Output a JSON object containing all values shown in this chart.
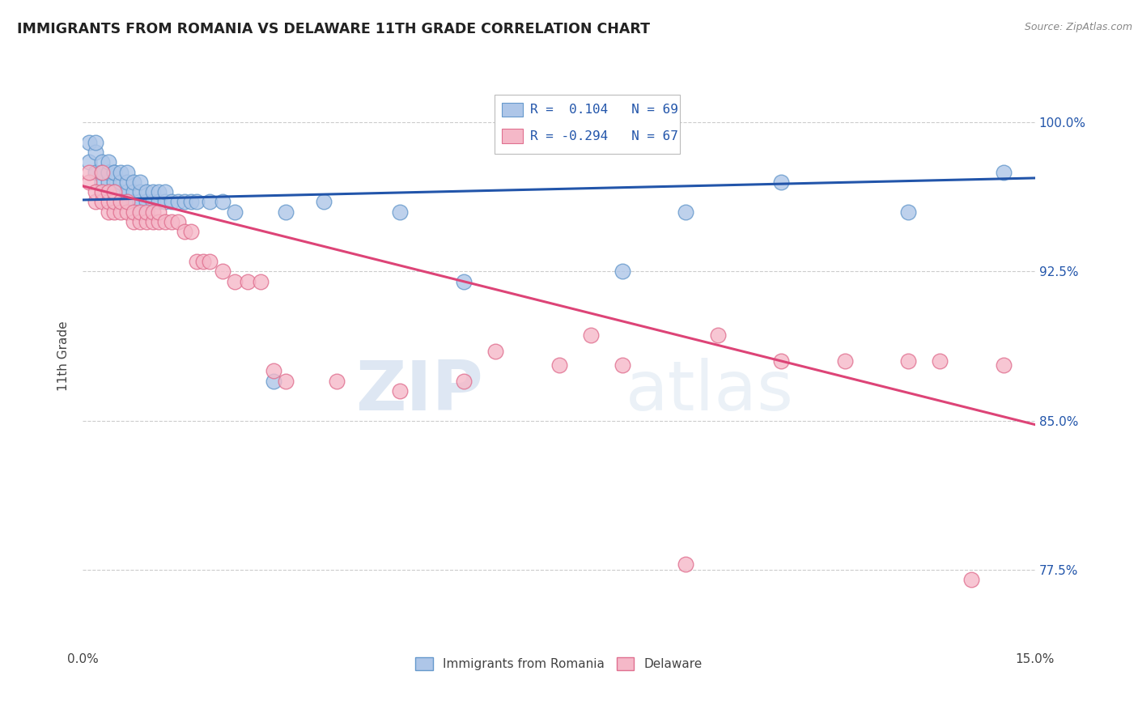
{
  "title": "IMMIGRANTS FROM ROMANIA VS DELAWARE 11TH GRADE CORRELATION CHART",
  "source": "Source: ZipAtlas.com",
  "ylabel": "11th Grade",
  "y_tick_labels": [
    "77.5%",
    "85.0%",
    "92.5%",
    "100.0%"
  ],
  "y_tick_values": [
    0.775,
    0.85,
    0.925,
    1.0
  ],
  "xlim": [
    0.0,
    0.15
  ],
  "ylim": [
    0.735,
    1.03
  ],
  "legend_label_blue": "Immigrants from Romania",
  "legend_label_pink": "Delaware",
  "blue_color": "#aec6e8",
  "blue_edge": "#6699cc",
  "pink_color": "#f5b8c8",
  "pink_edge": "#e07090",
  "blue_line_color": "#2255aa",
  "pink_line_color": "#dd4477",
  "watermark_zip": "ZIP",
  "watermark_atlas": "atlas",
  "blue_line_x": [
    0.0,
    0.15
  ],
  "blue_line_y": [
    0.961,
    0.972
  ],
  "pink_line_x": [
    0.0,
    0.15
  ],
  "pink_line_y": [
    0.968,
    0.848
  ],
  "blue_scatter_x": [
    0.001,
    0.001,
    0.002,
    0.002,
    0.002,
    0.003,
    0.003,
    0.003,
    0.003,
    0.004,
    0.004,
    0.004,
    0.004,
    0.005,
    0.005,
    0.005,
    0.005,
    0.005,
    0.006,
    0.006,
    0.006,
    0.006,
    0.007,
    0.007,
    0.007,
    0.007,
    0.008,
    0.008,
    0.008,
    0.009,
    0.009,
    0.009,
    0.009,
    0.01,
    0.01,
    0.01,
    0.011,
    0.011,
    0.012,
    0.012,
    0.013,
    0.013,
    0.014,
    0.015,
    0.016,
    0.017,
    0.018,
    0.02,
    0.022,
    0.024,
    0.03,
    0.032,
    0.038,
    0.05,
    0.06,
    0.085,
    0.095,
    0.11,
    0.13,
    0.145
  ],
  "blue_scatter_y": [
    0.99,
    0.98,
    0.975,
    0.985,
    0.99,
    0.975,
    0.97,
    0.98,
    0.975,
    0.975,
    0.97,
    0.975,
    0.98,
    0.97,
    0.975,
    0.965,
    0.96,
    0.975,
    0.965,
    0.97,
    0.975,
    0.96,
    0.965,
    0.96,
    0.97,
    0.975,
    0.96,
    0.965,
    0.97,
    0.955,
    0.96,
    0.965,
    0.97,
    0.955,
    0.96,
    0.965,
    0.96,
    0.965,
    0.96,
    0.965,
    0.96,
    0.965,
    0.96,
    0.96,
    0.96,
    0.96,
    0.96,
    0.96,
    0.96,
    0.955,
    0.87,
    0.955,
    0.96,
    0.955,
    0.92,
    0.925,
    0.955,
    0.97,
    0.955,
    0.975
  ],
  "pink_scatter_x": [
    0.001,
    0.001,
    0.002,
    0.002,
    0.003,
    0.003,
    0.003,
    0.004,
    0.004,
    0.004,
    0.005,
    0.005,
    0.005,
    0.006,
    0.006,
    0.007,
    0.007,
    0.008,
    0.008,
    0.009,
    0.009,
    0.01,
    0.01,
    0.011,
    0.011,
    0.012,
    0.012,
    0.013,
    0.014,
    0.015,
    0.016,
    0.017,
    0.018,
    0.019,
    0.02,
    0.022,
    0.024,
    0.026,
    0.028,
    0.03,
    0.032,
    0.04,
    0.05,
    0.06,
    0.065,
    0.075,
    0.08,
    0.085,
    0.095,
    0.1,
    0.11,
    0.12,
    0.13,
    0.135,
    0.14,
    0.145
  ],
  "pink_scatter_y": [
    0.97,
    0.975,
    0.96,
    0.965,
    0.96,
    0.965,
    0.975,
    0.955,
    0.96,
    0.965,
    0.955,
    0.96,
    0.965,
    0.955,
    0.96,
    0.955,
    0.96,
    0.95,
    0.955,
    0.95,
    0.955,
    0.95,
    0.955,
    0.95,
    0.955,
    0.95,
    0.955,
    0.95,
    0.95,
    0.95,
    0.945,
    0.945,
    0.93,
    0.93,
    0.93,
    0.925,
    0.92,
    0.92,
    0.92,
    0.875,
    0.87,
    0.87,
    0.865,
    0.87,
    0.885,
    0.878,
    0.893,
    0.878,
    0.778,
    0.893,
    0.88,
    0.88,
    0.88,
    0.88,
    0.77,
    0.878
  ]
}
